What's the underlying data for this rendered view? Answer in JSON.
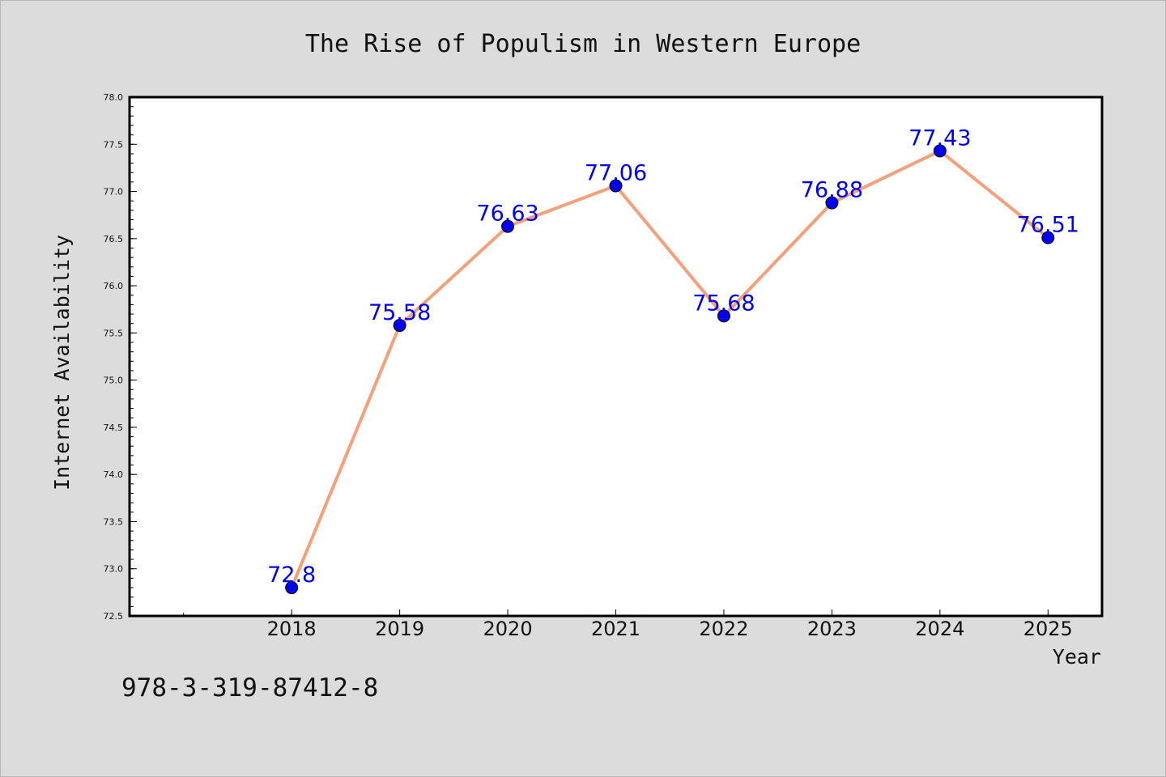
{
  "chart_data": {
    "type": "line",
    "title": "The Rise of Populism in Western Europe",
    "xlabel": "Year",
    "ylabel": "Internet Availability",
    "x": [
      2018,
      2019,
      2020,
      2021,
      2022,
      2023,
      2024,
      2025
    ],
    "x_tick_labels": [
      "2018",
      "2019",
      "2020",
      "2021",
      "2022",
      "2023",
      "2024",
      "2025"
    ],
    "xlim": [
      2016.5,
      2025.5
    ],
    "y": [
      72.8,
      75.58,
      76.63,
      77.06,
      75.68,
      76.88,
      77.43,
      76.51
    ],
    "data_labels": [
      "72.8",
      "75.58",
      "76.63",
      "77.06",
      "75.68",
      "76.88",
      "77.43",
      "76.51"
    ],
    "ylim": [
      72.5,
      78.0
    ],
    "y_ticks": [
      72.5,
      73.0,
      73.5,
      74.0,
      74.5,
      75.0,
      75.5,
      76.0,
      76.5,
      77.0,
      77.5,
      78.0
    ],
    "y_tick_labels": [
      "72.5",
      "73.0",
      "73.5",
      "74.0",
      "74.5",
      "75.0",
      "75.5",
      "76.0",
      "76.5",
      "77.0",
      "77.5",
      "78.0"
    ],
    "grid": false,
    "legend": "none",
    "line_color": "#f4a07a",
    "marker_color": "#0000ee",
    "label_color": "#0000ee"
  },
  "footer": {
    "isbn": "978-3-319-87412-8"
  }
}
